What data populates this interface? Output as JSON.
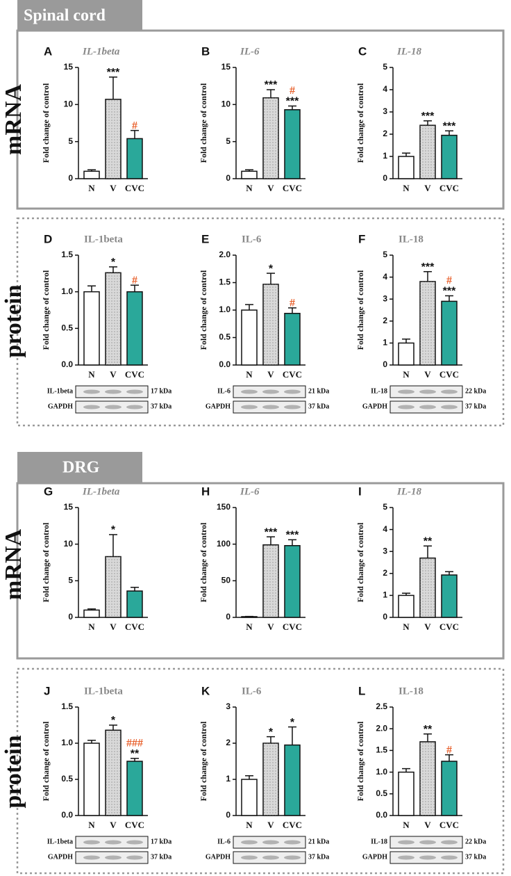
{
  "sections": [
    {
      "title": "Spinal cord",
      "rows": [
        "mRNA",
        "protein"
      ]
    },
    {
      "title": "DRG",
      "rows": [
        "mRNA",
        "protein"
      ]
    }
  ],
  "chart_data": [
    {
      "type": "bar",
      "panel": "A",
      "title": "IL-1beta",
      "ylabel": "Fold change of control",
      "categories": [
        "N",
        "V",
        "CVC"
      ],
      "values": [
        1.0,
        10.7,
        5.4
      ],
      "errors": [
        0.2,
        3.0,
        1.1
      ],
      "colors": [
        "#ffffff",
        "#d9d9d9",
        "#2aa89a"
      ],
      "patterns": [
        null,
        "dots",
        null
      ],
      "stars": [
        null,
        "***",
        null
      ],
      "hashes": [
        null,
        null,
        "#"
      ],
      "hash_color": "#e8602c",
      "ylim": [
        0,
        15
      ],
      "yticks": [
        0,
        5,
        10,
        15
      ]
    },
    {
      "type": "bar",
      "panel": "B",
      "title": "IL-6",
      "ylabel": "Fold change of control",
      "categories": [
        "N",
        "V",
        "CVC"
      ],
      "values": [
        1.0,
        10.9,
        9.3
      ],
      "errors": [
        0.2,
        1.1,
        0.5
      ],
      "colors": [
        "#ffffff",
        "#d9d9d9",
        "#2aa89a"
      ],
      "patterns": [
        null,
        "dots",
        null
      ],
      "stars": [
        null,
        "***",
        "***"
      ],
      "hashes": [
        null,
        null,
        "#"
      ],
      "hash_color": "#e8602c",
      "ylim": [
        0,
        15
      ],
      "yticks": [
        0,
        5,
        10,
        15
      ]
    },
    {
      "type": "bar",
      "panel": "C",
      "title": "IL-18",
      "ylabel": "Fold change of control",
      "categories": [
        "N",
        "V",
        "CVC"
      ],
      "values": [
        1.0,
        2.4,
        1.95
      ],
      "errors": [
        0.15,
        0.2,
        0.2
      ],
      "colors": [
        "#ffffff",
        "#d9d9d9",
        "#2aa89a"
      ],
      "patterns": [
        null,
        "dots",
        null
      ],
      "stars": [
        null,
        "***",
        "***"
      ],
      "hashes": [
        null,
        null,
        null
      ],
      "hash_color": "#e8602c",
      "ylim": [
        0,
        5
      ],
      "yticks": [
        0,
        1,
        2,
        3,
        4,
        5
      ]
    },
    {
      "type": "bar",
      "panel": "D",
      "title": "IL-1beta",
      "ylabel": "Fold change of control",
      "categories": [
        "N",
        "V",
        "CVC"
      ],
      "values": [
        1.0,
        1.26,
        1.0
      ],
      "errors": [
        0.08,
        0.08,
        0.09
      ],
      "colors": [
        "#ffffff",
        "#d9d9d9",
        "#2aa89a"
      ],
      "patterns": [
        null,
        "dots",
        null
      ],
      "stars": [
        null,
        "*",
        null
      ],
      "hashes": [
        null,
        null,
        "#"
      ],
      "hash_color": "#e8602c",
      "ylim": [
        0,
        1.5
      ],
      "yticks": [
        {
          "value": 0,
          "label": "0.0"
        },
        {
          "value": 0.5,
          "label": "0.5"
        },
        {
          "value": 1,
          "label": "1.0"
        },
        {
          "value": 1.5,
          "label": "1.5"
        }
      ],
      "blot_rows": [
        {
          "label": "IL-1beta",
          "size": "17 kDa"
        },
        {
          "label": "GAPDH",
          "size": "37 kDa"
        }
      ]
    },
    {
      "type": "bar",
      "panel": "E",
      "title": "IL-6",
      "ylabel": "Fold change of control",
      "categories": [
        "N",
        "V",
        "CVC"
      ],
      "values": [
        1.0,
        1.47,
        0.94
      ],
      "errors": [
        0.1,
        0.2,
        0.1
      ],
      "colors": [
        "#ffffff",
        "#d9d9d9",
        "#2aa89a"
      ],
      "patterns": [
        null,
        "dots",
        null
      ],
      "stars": [
        null,
        "*",
        null
      ],
      "hashes": [
        null,
        null,
        "#"
      ],
      "hash_color": "#e8602c",
      "ylim": [
        0,
        2
      ],
      "yticks": [
        {
          "value": 0,
          "label": "0.0"
        },
        {
          "value": 0.5,
          "label": "0.5"
        },
        {
          "value": 1,
          "label": "1.0"
        },
        {
          "value": 1.5,
          "label": "1.5"
        },
        {
          "value": 2,
          "label": "2.0"
        }
      ],
      "blot_rows": [
        {
          "label": "IL-6",
          "size": "21 kDa"
        },
        {
          "label": "GAPDH",
          "size": "37 kDa"
        }
      ]
    },
    {
      "type": "bar",
      "panel": "F",
      "title": "IL-18",
      "ylabel": "Fold change of control",
      "categories": [
        "N",
        "V",
        "CVC"
      ],
      "values": [
        1.0,
        3.8,
        2.9
      ],
      "errors": [
        0.18,
        0.45,
        0.25
      ],
      "colors": [
        "#ffffff",
        "#d9d9d9",
        "#2aa89a"
      ],
      "patterns": [
        null,
        "dots",
        null
      ],
      "stars": [
        null,
        "***",
        "***"
      ],
      "hashes": [
        null,
        null,
        "#"
      ],
      "hash_color": "#e8602c",
      "ylim": [
        0,
        5
      ],
      "yticks": [
        0,
        1,
        2,
        3,
        4,
        5
      ],
      "blot_rows": [
        {
          "label": "IL-18",
          "size": "22 kDa"
        },
        {
          "label": "GAPDH",
          "size": "37 kDa"
        }
      ]
    },
    {
      "type": "bar",
      "panel": "G",
      "title": "IL-1beta",
      "ylabel": "Fold change of control",
      "categories": [
        "N",
        "V",
        "CVC"
      ],
      "values": [
        1.0,
        8.3,
        3.6
      ],
      "errors": [
        0.15,
        3.0,
        0.5
      ],
      "colors": [
        "#ffffff",
        "#d9d9d9",
        "#2aa89a"
      ],
      "patterns": [
        null,
        "dots",
        null
      ],
      "stars": [
        null,
        "*",
        null
      ],
      "hashes": [
        null,
        null,
        null
      ],
      "hash_color": "#e8602c",
      "ylim": [
        0,
        15
      ],
      "yticks": [
        0,
        5,
        10,
        15
      ]
    },
    {
      "type": "bar",
      "panel": "H",
      "title": "IL-6",
      "ylabel": "Fold change of control",
      "categories": [
        "N",
        "V",
        "CVC"
      ],
      "values": [
        1,
        99,
        98
      ],
      "errors": [
        0.3,
        11,
        8
      ],
      "colors": [
        "#ffffff",
        "#d9d9d9",
        "#2aa89a"
      ],
      "patterns": [
        null,
        "dots",
        null
      ],
      "stars": [
        null,
        "***",
        "***"
      ],
      "hashes": [
        null,
        null,
        null
      ],
      "hash_color": "#e8602c",
      "ylim": [
        0,
        150
      ],
      "yticks": [
        0,
        50,
        100,
        150
      ]
    },
    {
      "type": "bar",
      "panel": "I",
      "title": "IL-18",
      "ylabel": "Fold change of control",
      "categories": [
        "N",
        "V",
        "CVC"
      ],
      "values": [
        1.0,
        2.7,
        1.93
      ],
      "errors": [
        0.1,
        0.55,
        0.15
      ],
      "colors": [
        "#ffffff",
        "#d9d9d9",
        "#2aa89a"
      ],
      "patterns": [
        null,
        "dots",
        null
      ],
      "stars": [
        null,
        "**",
        null
      ],
      "hashes": [
        null,
        null,
        null
      ],
      "hash_color": "#e8602c",
      "ylim": [
        0,
        5
      ],
      "yticks": [
        0,
        1,
        2,
        3,
        4,
        5
      ]
    },
    {
      "type": "bar",
      "panel": "J",
      "title": "IL-1beta",
      "ylabel": "Fold change of control",
      "categories": [
        "N",
        "V",
        "CVC"
      ],
      "values": [
        1.0,
        1.18,
        0.75
      ],
      "errors": [
        0.04,
        0.07,
        0.04
      ],
      "colors": [
        "#ffffff",
        "#d9d9d9",
        "#2aa89a"
      ],
      "patterns": [
        null,
        "dots",
        null
      ],
      "stars": [
        null,
        "*",
        "**"
      ],
      "hashes": [
        null,
        null,
        "###"
      ],
      "hash_color": "#e8602c",
      "ylim": [
        0,
        1.5
      ],
      "yticks": [
        {
          "value": 0,
          "label": "0.0"
        },
        {
          "value": 0.5,
          "label": "0.5"
        },
        {
          "value": 1,
          "label": "1.0"
        },
        {
          "value": 1.5,
          "label": "1.5"
        }
      ],
      "blot_rows": [
        {
          "label": "IL-1beta",
          "size": "17 kDa"
        },
        {
          "label": "GAPDH",
          "size": "37 kDa"
        }
      ]
    },
    {
      "type": "bar",
      "panel": "K",
      "title": "IL-6",
      "ylabel": "Fold change of control",
      "categories": [
        "N",
        "V",
        "CVC"
      ],
      "values": [
        1.0,
        2.0,
        1.95
      ],
      "errors": [
        0.1,
        0.18,
        0.5
      ],
      "colors": [
        "#ffffff",
        "#d9d9d9",
        "#2aa89a"
      ],
      "patterns": [
        null,
        "dots",
        null
      ],
      "stars": [
        null,
        "*",
        "*"
      ],
      "hashes": [
        null,
        null,
        null
      ],
      "hash_color": "#e8602c",
      "ylim": [
        0,
        3
      ],
      "yticks": [
        0,
        1,
        2,
        3
      ],
      "blot_rows": [
        {
          "label": "IL-6",
          "size": "21 kDa"
        },
        {
          "label": "GAPDH",
          "size": "37 kDa"
        }
      ]
    },
    {
      "type": "bar",
      "panel": "L",
      "title": "IL-18",
      "ylabel": "Fold change of control",
      "categories": [
        "N",
        "V",
        "CVC"
      ],
      "values": [
        1.0,
        1.7,
        1.25
      ],
      "errors": [
        0.08,
        0.18,
        0.15
      ],
      "colors": [
        "#ffffff",
        "#d9d9d9",
        "#2aa89a"
      ],
      "patterns": [
        null,
        "dots",
        null
      ],
      "stars": [
        null,
        "**",
        null
      ],
      "hashes": [
        null,
        null,
        "#"
      ],
      "hash_color": "#e8602c",
      "ylim": [
        0,
        2.5
      ],
      "yticks": [
        {
          "value": 0,
          "label": "0.0"
        },
        {
          "value": 0.5,
          "label": "0.5"
        },
        {
          "value": 1,
          "label": "1.0"
        },
        {
          "value": 1.5,
          "label": "1.5"
        },
        {
          "value": 2,
          "label": "2.0"
        },
        {
          "value": 2.5,
          "label": "2.5"
        }
      ],
      "blot_rows": [
        {
          "label": "IL-18",
          "size": "22 kDa"
        },
        {
          "label": "GAPDH",
          "size": "37 kDa"
        }
      ]
    }
  ]
}
